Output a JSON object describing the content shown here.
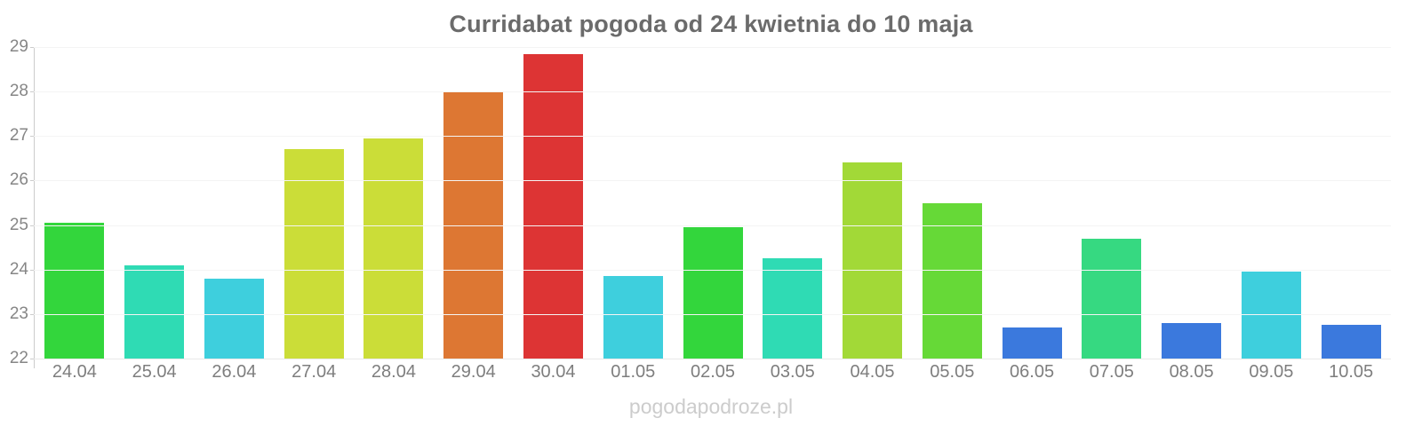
{
  "title": "Curridabat pogoda od 24 kwietnia do 10 maja",
  "watermark": "pogodapodroze.pl",
  "chart_data": {
    "type": "bar",
    "title": "Curridabat pogoda od 24 kwietnia do 10 maja",
    "categories": [
      "24.04",
      "25.04",
      "26.04",
      "27.04",
      "28.04",
      "29.04",
      "30.04",
      "01.05",
      "02.05",
      "03.05",
      "04.05",
      "05.05",
      "06.05",
      "07.05",
      "08.05",
      "09.05",
      "10.05"
    ],
    "values": [
      25.05,
      24.1,
      23.8,
      26.7,
      26.95,
      28.0,
      28.85,
      23.85,
      24.95,
      24.25,
      26.4,
      25.5,
      22.7,
      24.7,
      22.8,
      23.95,
      22.75
    ],
    "bar_colors": [
      "#33d63c",
      "#2fdbb4",
      "#3ecfdd",
      "#cbdd38",
      "#cbdd38",
      "#dd7733",
      "#dd3434",
      "#3ecfdd",
      "#33d63c",
      "#2fdbb4",
      "#a2d937",
      "#66d937",
      "#3b79dd",
      "#36d981",
      "#3b79dd",
      "#3ecfdd",
      "#3b79dd"
    ],
    "xlabel": "",
    "ylabel": "",
    "ylim": [
      22,
      29
    ],
    "yticks": [
      22,
      23,
      24,
      25,
      26,
      27,
      28,
      29
    ],
    "grid": true,
    "legend": false
  },
  "style_colors": {
    "background": "#ffffff",
    "title_text": "#6b6b6b",
    "axis_line": "#cccccc",
    "gridline": "#f4f4f4",
    "tick_label": "#868686",
    "category_label": "#7e7e7e",
    "watermark_text": "#cccccc"
  }
}
